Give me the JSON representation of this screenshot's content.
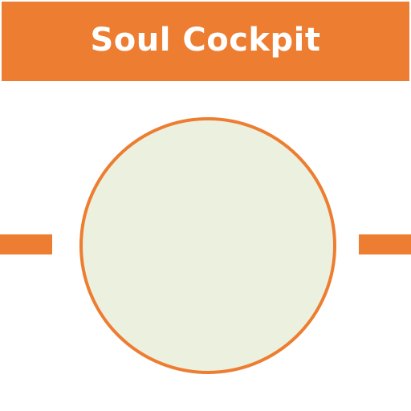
{
  "title": "Soul Cockpit",
  "colors": {
    "accent": "#ed7d31",
    "circle_fill": "#ebf1de",
    "background": "#ffffff",
    "title_text": "#ffffff"
  }
}
